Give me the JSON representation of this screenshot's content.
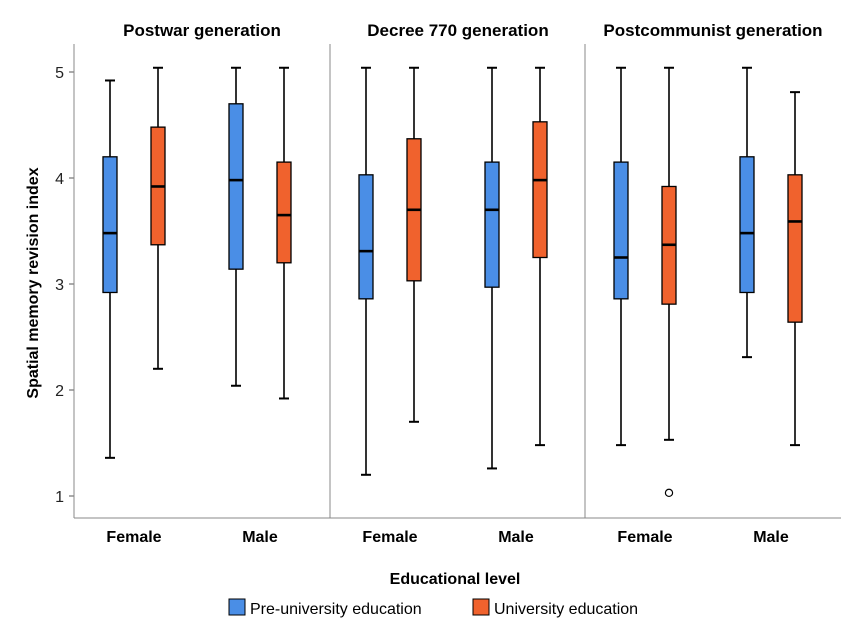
{
  "chart_data": {
    "type": "box",
    "xlabel": "Educational level",
    "ylabel": "Spatial memory revision index",
    "ylim": [
      1,
      5
    ],
    "yticks": [
      1,
      2,
      3,
      4,
      5
    ],
    "grid": false,
    "legend_position": "bottom",
    "series": [
      {
        "name": "Pre-university education",
        "color": "#4a8ee6"
      },
      {
        "name": "University education",
        "color": "#f0622d"
      }
    ],
    "panels": [
      {
        "title": "Postwar generation",
        "categories": [
          "Female",
          "Male"
        ],
        "boxes": [
          [
            {
              "min": 1.36,
              "q1": 2.92,
              "median": 3.48,
              "q3": 4.2,
              "max": 4.92
            },
            {
              "min": 2.2,
              "q1": 3.37,
              "median": 3.92,
              "q3": 4.48,
              "max": 5.04
            }
          ],
          [
            {
              "min": 2.04,
              "q1": 3.14,
              "median": 3.98,
              "q3": 4.7,
              "max": 5.04
            },
            {
              "min": 1.92,
              "q1": 3.2,
              "median": 3.65,
              "q3": 4.15,
              "max": 5.04
            }
          ]
        ],
        "outliers": []
      },
      {
        "title": "Decree 770 generation",
        "categories": [
          "Female",
          "Male"
        ],
        "boxes": [
          [
            {
              "min": 1.2,
              "q1": 2.86,
              "median": 3.31,
              "q3": 4.03,
              "max": 5.04
            },
            {
              "min": 1.7,
              "q1": 3.03,
              "median": 3.7,
              "q3": 4.37,
              "max": 5.04
            }
          ],
          [
            {
              "min": 1.26,
              "q1": 2.97,
              "median": 3.7,
              "q3": 4.15,
              "max": 5.04
            },
            {
              "min": 1.48,
              "q1": 3.25,
              "median": 3.98,
              "q3": 4.53,
              "max": 5.04
            }
          ]
        ],
        "outliers": []
      },
      {
        "title": "Postcommunist generation",
        "categories": [
          "Female",
          "Male"
        ],
        "boxes": [
          [
            {
              "min": 1.48,
              "q1": 2.86,
              "median": 3.25,
              "q3": 4.15,
              "max": 5.04
            },
            {
              "min": 1.53,
              "q1": 2.81,
              "median": 3.37,
              "q3": 3.92,
              "max": 5.04
            }
          ],
          [
            {
              "min": 2.31,
              "q1": 2.92,
              "median": 3.48,
              "q3": 4.2,
              "max": 5.04
            },
            {
              "min": 1.48,
              "q1": 2.64,
              "median": 3.59,
              "q3": 4.03,
              "max": 4.81
            }
          ]
        ],
        "outliers": [
          {
            "category": 0,
            "series": 1,
            "value": 1.03
          }
        ]
      }
    ]
  }
}
